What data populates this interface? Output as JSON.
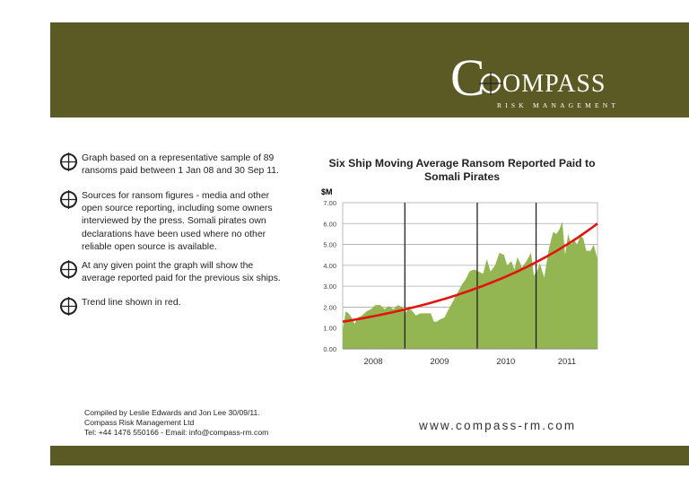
{
  "logo": {
    "initial": "C",
    "rest": "OMPASS",
    "subtitle": "RISK MANAGEMENT"
  },
  "bullets": [
    {
      "lines": [
        "Graph based on a representative sample of  89",
        "ransoms paid between 1 Jan 08 and 30 Sep 11."
      ]
    },
    {
      "lines": [
        "Sources for ransom figures - media and other",
        "open source reporting, including some owners",
        "interviewed by the press. Somali pirates own",
        "declarations have been used where no other",
        "reliable open source  is  available."
      ]
    },
    {
      "lines": [
        "At any given point the graph will show the",
        "average reported paid for the previous six ships."
      ]
    },
    {
      "lines": [
        "Trend line shown in red."
      ]
    }
  ],
  "credits": [
    "Compiled by Leslie Edwards and Jon Lee 30/09/11.",
    "Compass Risk Management Ltd",
    "Tel: +44 1476 550166 - Email: info@compass-rm.com"
  ],
  "website": "www.compass-rm.com",
  "chart_data": {
    "type": "area",
    "title": "Six Ship Moving Average Ransom Reported Paid to Somali Pirates",
    "title_lines": [
      "Six Ship Moving Average Ransom Reported Paid to",
      "Somali Pirates"
    ],
    "ylabel": "$M",
    "ylim": [
      0,
      7
    ],
    "yticks": [
      "0.00",
      "1.00",
      "2.00",
      "3.00",
      "4.00",
      "5.00",
      "6.00",
      "7.00"
    ],
    "xlim": [
      0,
      100
    ],
    "year_labels": [
      {
        "label": "2008",
        "x": 12
      },
      {
        "label": "2009",
        "x": 38
      },
      {
        "label": "2010",
        "x": 64
      },
      {
        "label": "2011",
        "x": 88
      }
    ],
    "year_boundaries": [
      24.4,
      52.8,
      75.9
    ],
    "series": [
      {
        "name": "Six ship moving average",
        "color": "#93b552",
        "x": [
          0,
          1.2,
          2.3,
          3.5,
          4.7,
          5.9,
          7.6,
          9.4,
          11.1,
          12.9,
          14.7,
          16.4,
          18.2,
          19.9,
          21.7,
          23.4,
          24.4,
          25.8,
          27,
          28.7,
          30.5,
          32.2,
          34.6,
          35.8,
          36.9,
          38.1,
          39.9,
          41.6,
          43.4,
          45.1,
          46.9,
          48.1,
          49.8,
          51.6,
          53.3,
          55.1,
          56.6,
          58,
          59.8,
          61.5,
          63.3,
          64.5,
          66.2,
          67.4,
          68.6,
          70.3,
          72.1,
          73.9,
          75,
          76.2,
          77.4,
          79.1,
          80.9,
          82.6,
          83.8,
          85,
          86.2,
          87.3,
          88.5,
          89.7,
          90.9,
          92,
          93.2,
          94.4,
          95.6,
          97.3,
          98.5,
          100
        ],
        "values": [
          0.9,
          1.8,
          1.7,
          1.5,
          1.2,
          1.5,
          1.6,
          1.8,
          1.9,
          2.1,
          2.1,
          1.9,
          2.05,
          1.9,
          2.1,
          2.0,
          1.7,
          1.9,
          1.85,
          1.6,
          1.7,
          1.7,
          1.7,
          1.3,
          1.3,
          1.4,
          1.5,
          1.9,
          2.3,
          2.7,
          3.1,
          3.3,
          3.7,
          3.8,
          3.7,
          3.6,
          4.3,
          3.7,
          4.0,
          4.6,
          4.5,
          4.0,
          4.2,
          3.8,
          4.4,
          3.9,
          4.2,
          4.6,
          3.5,
          3.7,
          4.1,
          3.4,
          4.8,
          5.6,
          5.5,
          5.7,
          6.1,
          4.5,
          5.5,
          5.0,
          5.2,
          5.0,
          5.4,
          5.3,
          4.7,
          4.7,
          5.0,
          4.3
        ]
      },
      {
        "name": "Trend line",
        "color": "#e3140f",
        "type": "exponential",
        "start": 1.3,
        "end": 6.0
      }
    ]
  }
}
